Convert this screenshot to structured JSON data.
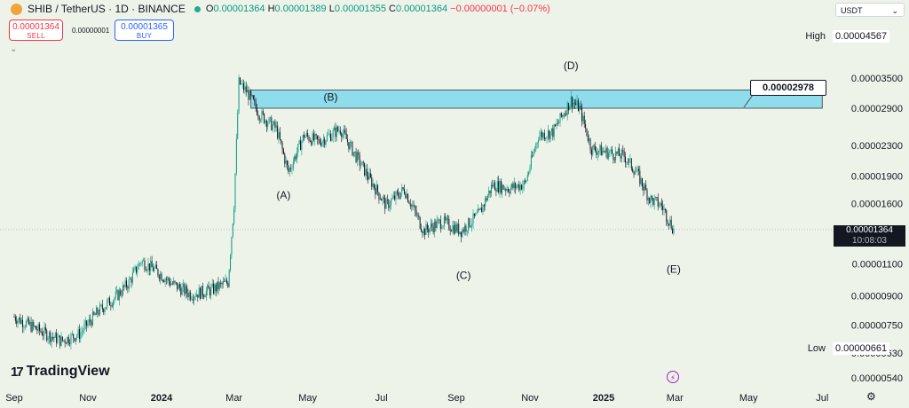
{
  "header": {
    "symbol": "SHIB / TetherUS · 1D · BINANCE",
    "ohlc": [
      {
        "key": "O",
        "value": "0.00001364"
      },
      {
        "key": "H",
        "value": "0.00001389"
      },
      {
        "key": "L",
        "value": "0.00001355"
      },
      {
        "key": "C",
        "value": "0.00001364"
      }
    ],
    "change": "−0.00000001 (−0.07%)",
    "currency": "USDT",
    "status_color": "#22ab94"
  },
  "trade": {
    "sell_price": "0.00001364",
    "sell_label": "SELL",
    "spread": "0.00000001",
    "buy_price": "0.00001365",
    "buy_label": "BUY"
  },
  "branding": {
    "name": "TradingView"
  },
  "price_scale": {
    "high_label": "High",
    "high_value": "0.00004567",
    "low_label": "Low",
    "low_value": "0.00000661",
    "current_price": "0.00001364",
    "countdown": "10:08:03"
  },
  "annotation": {
    "zone_value": "0.00002978"
  },
  "chart_data": {
    "type": "candlestick",
    "y_scale": "log",
    "y_ticks": [
      3.5e-05,
      2.9e-05,
      2.3e-05,
      1.9e-05,
      1.6e-05,
      1.1e-05,
      9e-06,
      7.5e-06,
      6.3e-06,
      5.4e-06
    ],
    "y_tick_labels": [
      "0.00003500",
      "0.00002900",
      "0.00002300",
      "0.00001900",
      "0.00001600",
      "0.00001100",
      "0.00000900",
      "0.00000750",
      "0.00000630",
      "0.00000540"
    ],
    "x_ticks": [
      "2023-09-01",
      "2023-11-01",
      "2024-01-01",
      "2024-03-01",
      "2024-05-01",
      "2024-07-01",
      "2024-09-01",
      "2024-11-01",
      "2025-01-01",
      "2025-03-01",
      "2025-05-01",
      "2025-07-01"
    ],
    "x_tick_labels": [
      "Sep",
      "Nov",
      "2024",
      "Mar",
      "May",
      "Jul",
      "Sep",
      "Nov",
      "2025",
      "Mar",
      "May",
      "Jul"
    ],
    "x_tick_bold": [
      false,
      false,
      true,
      false,
      false,
      false,
      false,
      false,
      true,
      false,
      false,
      false
    ],
    "up_color": "#089981",
    "down_color": "#131722",
    "zone": {
      "x_start": "2024-03-15",
      "x_end": "2025-07-01",
      "y_low": 2.9e-05,
      "y_high": 3.25e-05,
      "fill": "#8fdcec"
    },
    "wave_labels": [
      {
        "text": "(A)",
        "x": "2024-04-11",
        "y": 1.65e-05
      },
      {
        "text": "(B)",
        "x": "2024-05-20",
        "y": 3.04e-05
      },
      {
        "text": "(C)",
        "x": "2024-09-07",
        "y": 1e-05
      },
      {
        "text": "(D)",
        "x": "2024-12-05",
        "y": 3.7e-05
      },
      {
        "text": "(E)",
        "x": "2025-02-28",
        "y": 1.04e-05
      }
    ],
    "price_path": [
      [
        "2023-09-01",
        7.9e-06
      ],
      [
        "2023-09-20",
        7.3e-06
      ],
      [
        "2023-10-10",
        6.8e-06
      ],
      [
        "2023-10-25",
        7.1e-06
      ],
      [
        "2023-11-10",
        8.2e-06
      ],
      [
        "2023-11-25",
        9e-06
      ],
      [
        "2023-12-05",
        9.8e-06
      ],
      [
        "2023-12-15",
        1.12e-05
      ],
      [
        "2023-12-28",
        1.05e-05
      ],
      [
        "2024-01-10",
        9.7e-06
      ],
      [
        "2024-01-25",
        9.1e-06
      ],
      [
        "2024-02-10",
        9.3e-06
      ],
      [
        "2024-02-25",
        9.8e-06
      ],
      [
        "2024-03-01",
        1.6e-05
      ],
      [
        "2024-03-05",
        3.4e-05
      ],
      [
        "2024-03-12",
        3.2e-05
      ],
      [
        "2024-03-22",
        2.8e-05
      ],
      [
        "2024-04-05",
        2.55e-05
      ],
      [
        "2024-04-15",
        1.95e-05
      ],
      [
        "2024-04-28",
        2.45e-05
      ],
      [
        "2024-05-10",
        2.35e-05
      ],
      [
        "2024-05-28",
        2.55e-05
      ],
      [
        "2024-06-10",
        2.15e-05
      ],
      [
        "2024-06-22",
        1.85e-05
      ],
      [
        "2024-07-05",
        1.58e-05
      ],
      [
        "2024-07-20",
        1.75e-05
      ],
      [
        "2024-08-05",
        1.35e-05
      ],
      [
        "2024-08-20",
        1.43e-05
      ],
      [
        "2024-09-05",
        1.35e-05
      ],
      [
        "2024-09-20",
        1.5e-05
      ],
      [
        "2024-10-01",
        1.8e-05
      ],
      [
        "2024-10-15",
        1.76e-05
      ],
      [
        "2024-10-28",
        1.81e-05
      ],
      [
        "2024-11-08",
        2.45e-05
      ],
      [
        "2024-11-20",
        2.5e-05
      ],
      [
        "2024-12-05",
        3.05e-05
      ],
      [
        "2024-12-12",
        2.9e-05
      ],
      [
        "2024-12-22",
        2.25e-05
      ],
      [
        "2025-01-05",
        2.2e-05
      ],
      [
        "2025-01-18",
        2.15e-05
      ],
      [
        "2025-01-28",
        1.95e-05
      ],
      [
        "2025-02-08",
        1.65e-05
      ],
      [
        "2025-02-18",
        1.58e-05
      ],
      [
        "2025-02-28",
        1.36e-05
      ]
    ]
  }
}
